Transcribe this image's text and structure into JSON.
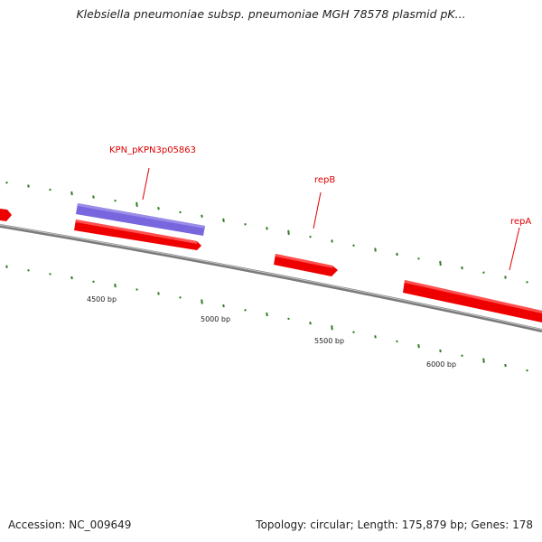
{
  "header": {
    "title": "Klebsiella pneumoniae subsp. pneumoniae MGH 78578 plasmid pK..."
  },
  "footer": {
    "accession": "Accession: NC_009649",
    "summary": "Topology: circular; Length: 175,879 bp; Genes: 178"
  },
  "map": {
    "colors": {
      "backbone": "#7a7a7a",
      "forward_gene": "#ee0000",
      "highlight_feature": "#7766dd",
      "gc_marks": "#2e7d1e",
      "gene_label": "#dd0000"
    },
    "gene_labels": [
      {
        "id": "kpn",
        "text": "KPN_pKPN3p05863"
      },
      {
        "id": "repB",
        "text": "repB"
      },
      {
        "id": "repA",
        "text": "repA"
      }
    ],
    "position_labels": [
      "4500 bp",
      "5000 bp",
      "5500 bp",
      "6000 bp"
    ]
  }
}
